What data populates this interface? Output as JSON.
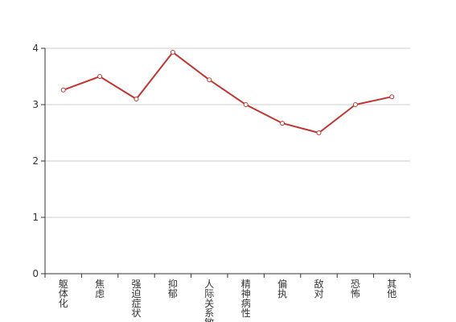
{
  "chart_data": {
    "type": "line",
    "categories": [
      "躯体化",
      "焦虑",
      "强迫症状",
      "抑郁",
      "人际关系敏感",
      "精神病性",
      "偏执",
      "敌对",
      "恐怖",
      "其他"
    ],
    "values": [
      3.26,
      3.5,
      3.1,
      3.93,
      3.44,
      3.0,
      2.67,
      2.5,
      3.0,
      3.14
    ],
    "color": "#c23531",
    "ylim": [
      0,
      4
    ],
    "yticks": [
      0,
      1,
      2,
      3,
      4
    ],
    "grid": true
  }
}
